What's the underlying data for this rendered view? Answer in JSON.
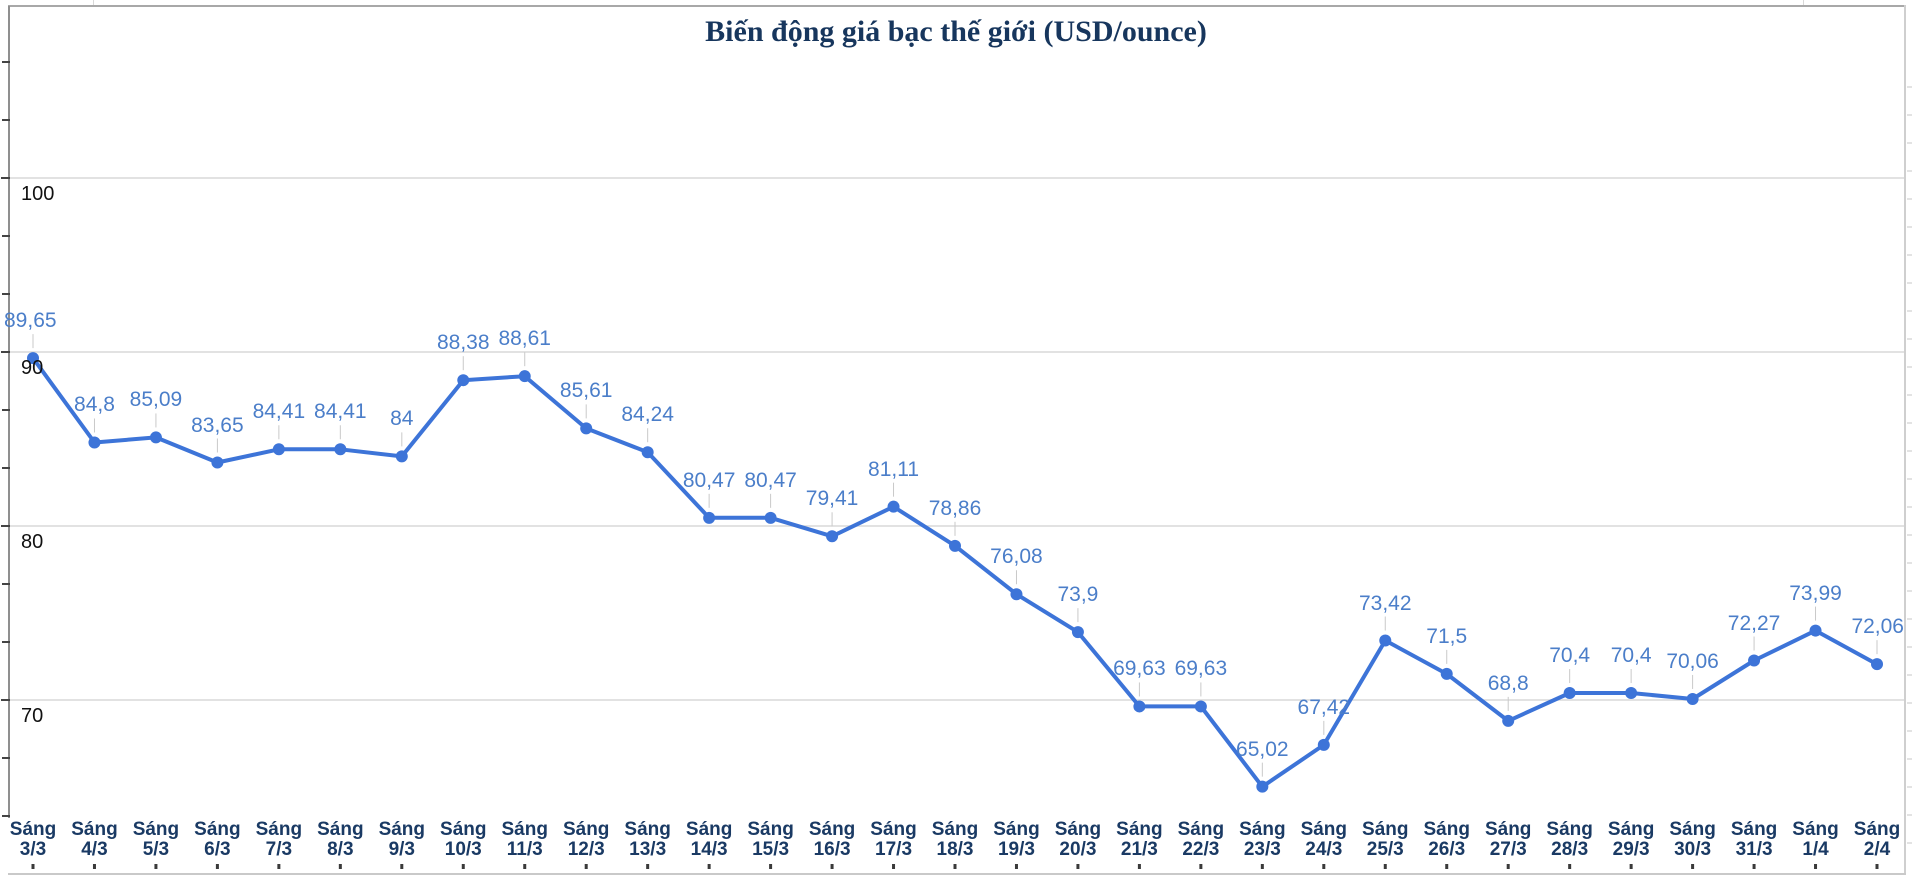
{
  "title": "Biến động giá bạc thế giới (USD/ounce)",
  "chart_data": {
    "type": "line",
    "title": "Biến động giá bạc thế giới (USD/ounce)",
    "categories": [
      "Sáng 3/3",
      "Sáng 4/3",
      "Sáng 5/3",
      "Sáng 6/3",
      "Sáng 7/3",
      "Sáng 8/3",
      "Sáng 9/3",
      "Sáng 10/3",
      "Sáng 11/3",
      "Sáng 12/3",
      "Sáng 13/3",
      "Sáng 14/3",
      "Sáng 15/3",
      "Sáng 16/3",
      "Sáng 17/3",
      "Sáng 18/3",
      "Sáng 19/3",
      "Sáng 20/3",
      "Sáng 21/3",
      "Sáng 22/3",
      "Sáng 23/3",
      "Sáng 24/3",
      "Sáng 25/3",
      "Sáng 26/3",
      "Sáng 27/3",
      "Sáng 28/3",
      "Sáng 29/3",
      "Sáng 30/3",
      "Sáng 31/3",
      "Sáng 1/4",
      "Sáng 2/4"
    ],
    "values": [
      89.65,
      84.8,
      85.09,
      83.65,
      84.41,
      84.41,
      84,
      88.38,
      88.61,
      85.61,
      84.24,
      80.47,
      80.47,
      79.41,
      81.11,
      78.86,
      76.08,
      73.9,
      69.63,
      69.63,
      65.02,
      67.42,
      73.42,
      71.5,
      68.8,
      70.4,
      70.4,
      70.06,
      72.27,
      73.99,
      72.06
    ],
    "point_labels": [
      "89,65",
      "84,8",
      "85,09",
      "83,65",
      "84,41",
      "84,41",
      "84",
      "88,38",
      "88,61",
      "85,61",
      "84,24",
      "80,47",
      "80,47",
      "79,41",
      "81,11",
      "78,86",
      "76,08",
      "73,9",
      "69,63",
      "69,63",
      "65,02",
      "67,42",
      "73,42",
      "71,5",
      "68,8",
      "70,4",
      "70,4",
      "70,06",
      "72,27",
      "73,99",
      "72,06"
    ],
    "y_ticks": [
      100,
      90,
      80,
      70
    ],
    "y_tick_labels": [
      "100",
      "90",
      "80",
      "70"
    ],
    "ylim": [
      63,
      110
    ],
    "xlabel": "",
    "ylabel": "",
    "grid": "horizontal",
    "legend": "none",
    "colors": {
      "line": "#3d74d8",
      "point": "#3d74d8",
      "data_label": "#4b7ec9",
      "leader_line": "#c9c9c9",
      "gridline": "#d9d9d9",
      "y_axis_label": "#111111",
      "category_label": "#1a3a64",
      "title": "#17365d",
      "tick": "#3a3a3a"
    }
  }
}
